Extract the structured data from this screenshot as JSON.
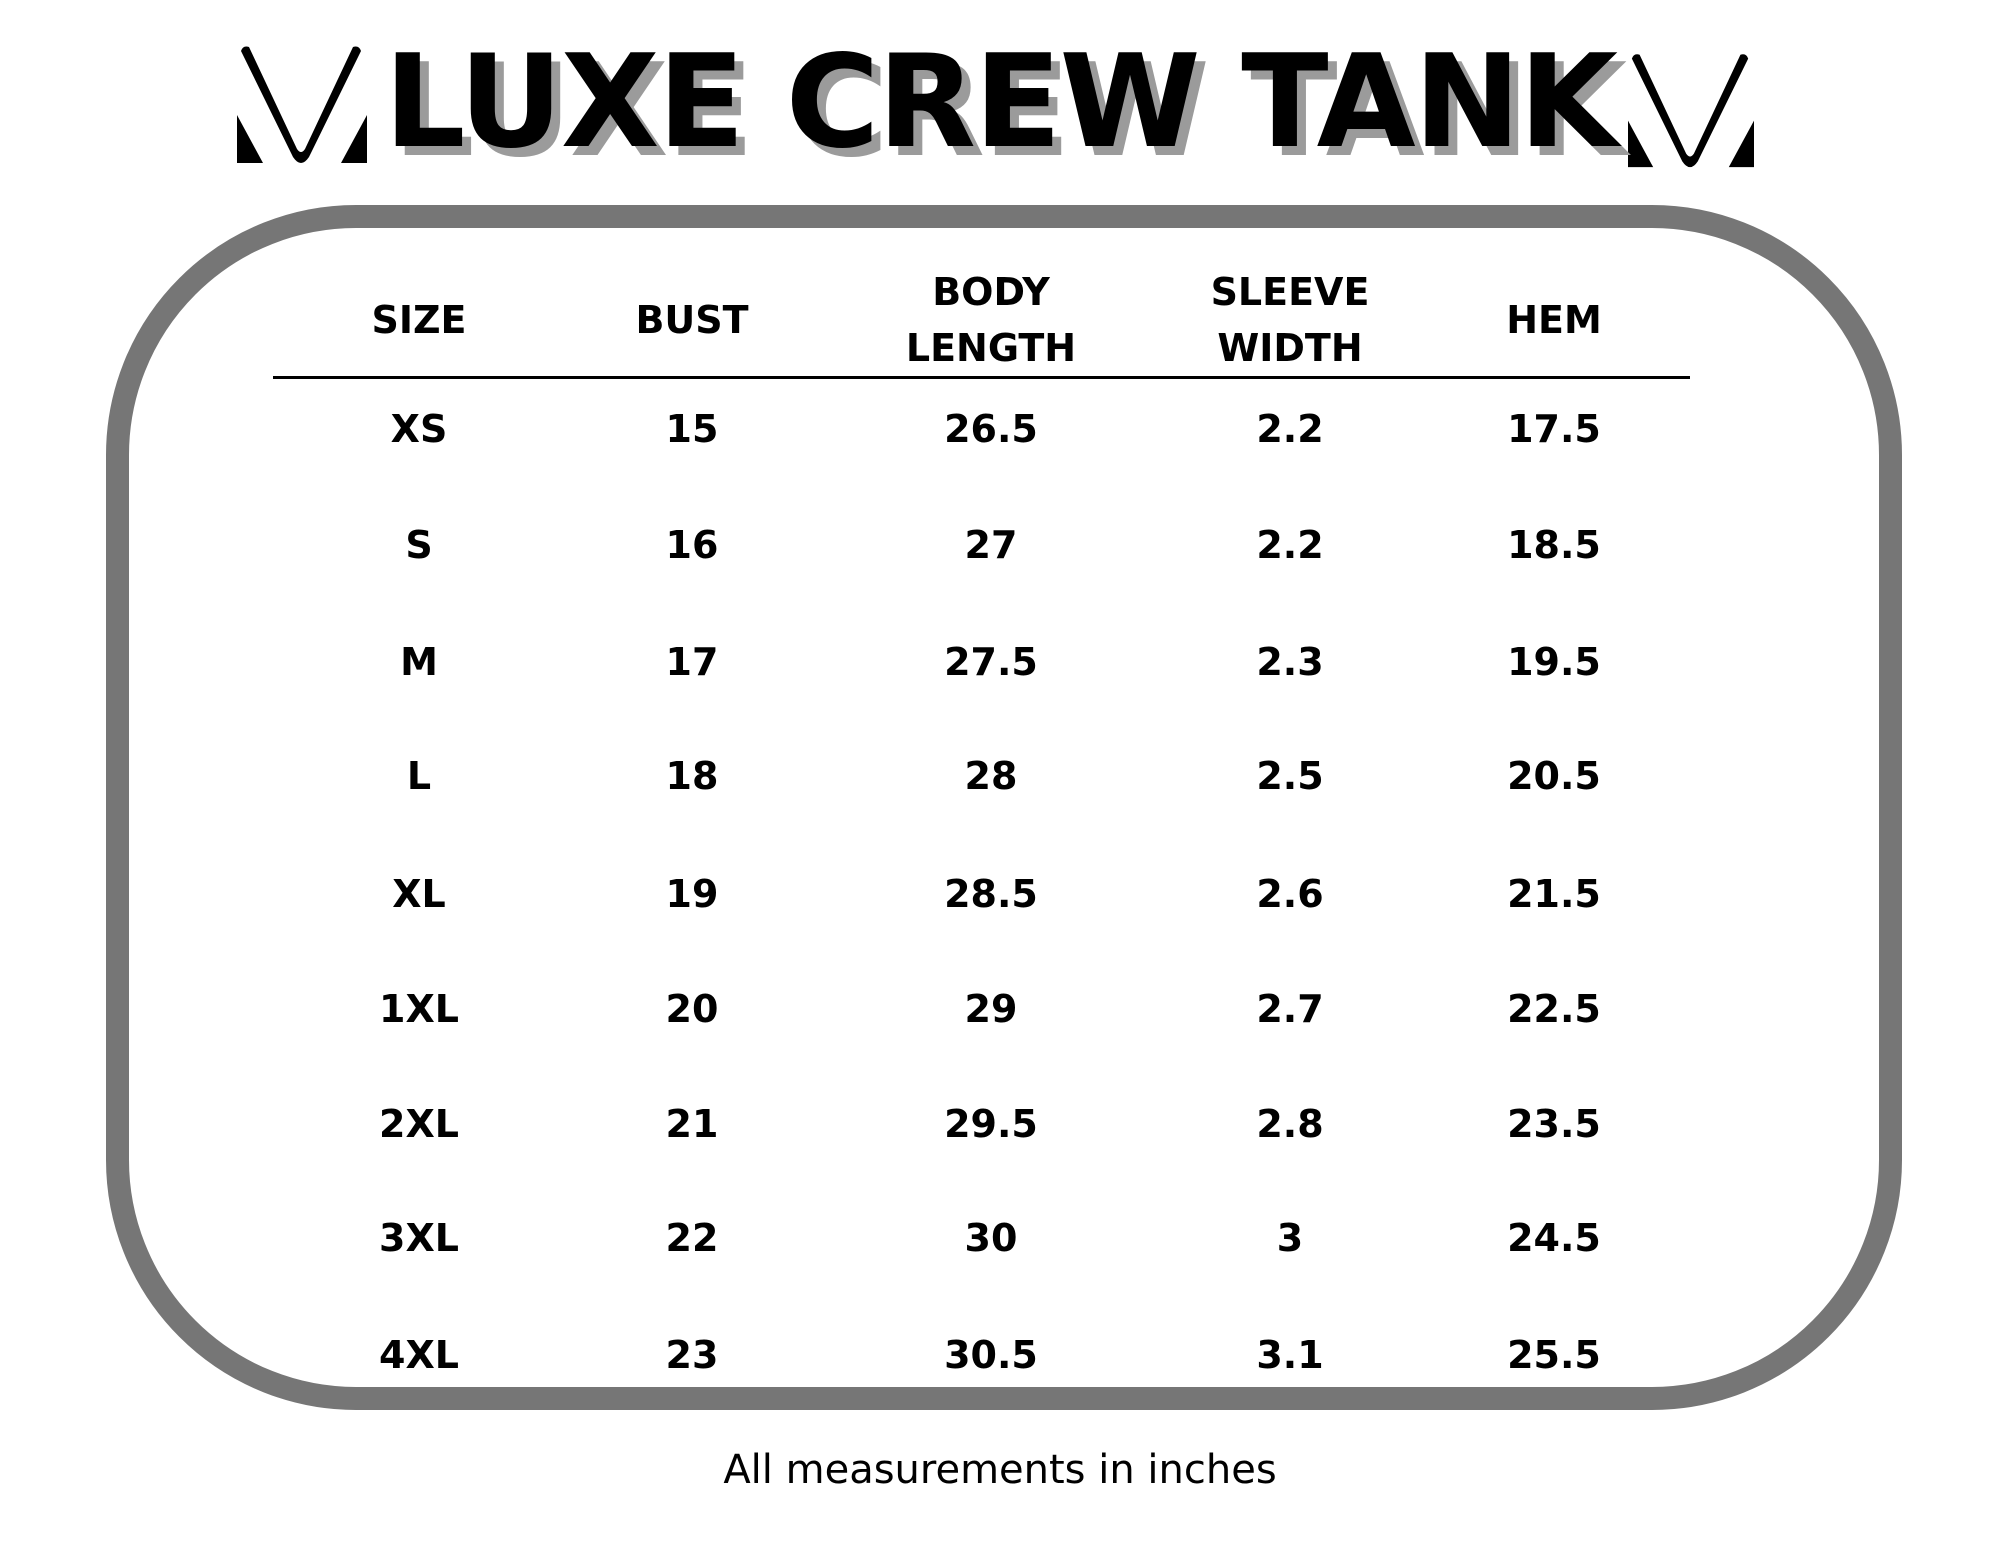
{
  "title": "LUXE CREW TANK",
  "logo": {
    "icon": "m-chevron-logo",
    "color": "#000000"
  },
  "border_color": "#767676",
  "table": {
    "headers": [
      [
        "SIZE"
      ],
      [
        "BUST"
      ],
      [
        "BODY",
        "LENGTH"
      ],
      [
        "SLEEVE",
        "WIDTH"
      ],
      [
        "HEM"
      ]
    ],
    "rows": [
      [
        "XS",
        "15",
        "26.5",
        "2.2",
        "17.5"
      ],
      [
        "S",
        "16",
        "27",
        "2.2",
        "18.5"
      ],
      [
        "M",
        "17",
        "27.5",
        "2.3",
        "19.5"
      ],
      [
        "L",
        "18",
        "28",
        "2.5",
        "20.5"
      ],
      [
        "XL",
        "19",
        "28.5",
        "2.6",
        "21.5"
      ],
      [
        "1XL",
        "20",
        "29",
        "2.7",
        "22.5"
      ],
      [
        "2XL",
        "21",
        "29.5",
        "2.8",
        "23.5"
      ],
      [
        "3XL",
        "22",
        "30",
        "3",
        "24.5"
      ],
      [
        "4XL",
        "23",
        "30.5",
        "3.1",
        "25.5"
      ]
    ]
  },
  "footer": "All measurements in inches"
}
